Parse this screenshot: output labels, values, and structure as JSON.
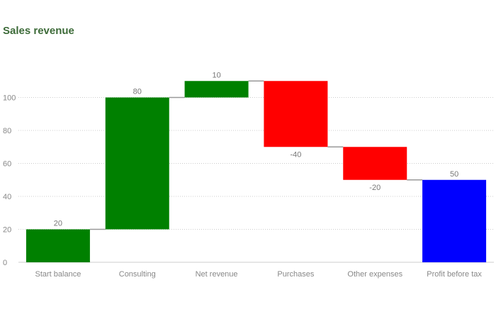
{
  "chart_data": {
    "type": "bar",
    "subtype": "waterfall",
    "title": "Sales revenue",
    "categories": [
      "Start balance",
      "Consulting",
      "Net revenue",
      "Purchases",
      "Other expenses",
      "Profit before tax"
    ],
    "values": [
      20,
      80,
      10,
      -40,
      -20,
      50
    ],
    "value_labels": [
      "20",
      "80",
      "10",
      "-40",
      "-20",
      "50"
    ],
    "is_total": [
      false,
      false,
      false,
      false,
      false,
      true
    ],
    "bar_colors": [
      "#008000",
      "#008000",
      "#008000",
      "#ff0000",
      "#ff0000",
      "#0000ff"
    ],
    "connector_color": "#999999",
    "ylim": [
      0,
      110
    ],
    "yticks": [
      0,
      20,
      40,
      60,
      80,
      100
    ],
    "ytick_labels": [
      "0",
      "20",
      "40",
      "60",
      "80",
      "100"
    ],
    "grid": true,
    "xlabel": "",
    "ylabel": ""
  },
  "colors": {
    "title": "#3d6b39",
    "grid": "#cccccc",
    "axis_text": "#888888"
  }
}
